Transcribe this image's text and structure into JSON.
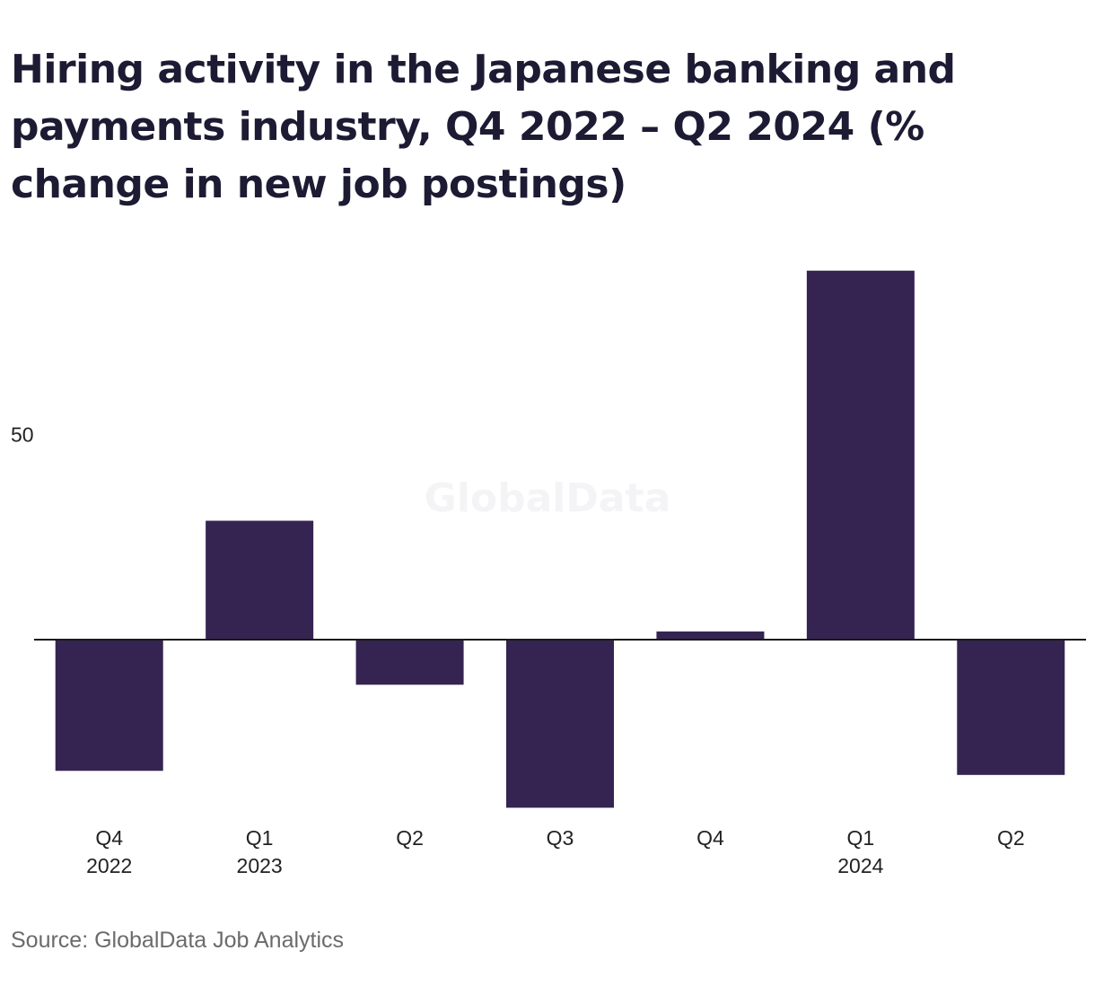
{
  "chart_data": {
    "type": "bar",
    "title": "Hiring activity in the Japanese banking and payments industry, Q4 2022 – Q2 2024 (% change in new job postings)",
    "categories": [
      [
        "Q4",
        "2022"
      ],
      [
        "Q1",
        "2023"
      ],
      [
        "Q2",
        ""
      ],
      [
        "Q3",
        ""
      ],
      [
        "Q4",
        ""
      ],
      [
        "Q1",
        "2024"
      ],
      [
        "Q2",
        ""
      ]
    ],
    "values": [
      -32,
      29,
      -11,
      -41,
      2,
      90,
      -33
    ],
    "yticks": [
      50
    ],
    "ylim": [
      -45,
      100
    ],
    "xlabel": "",
    "ylabel": "",
    "grid": false,
    "bar_color": "#352451",
    "zero_line_color": "#1a1a1a"
  },
  "watermark": "GlobalData",
  "source": "Source: GlobalData Job Analytics"
}
